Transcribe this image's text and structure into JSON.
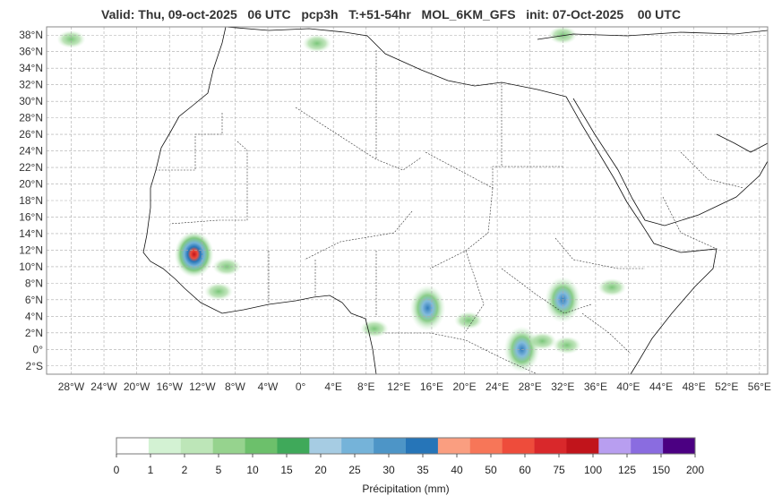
{
  "title": "Valid: Thu, 09-oct-2025   06 UTC   pcp3h   T:+51-54hr   MOL_6KM_GFS   init: 07-Oct-2025    00 UTC",
  "map": {
    "lon_range": [
      -31,
      57
    ],
    "lat_range": [
      -3,
      39
    ],
    "lon_ticks": [
      {
        "value": -28,
        "label": "28°W"
      },
      {
        "value": -24,
        "label": "24°W"
      },
      {
        "value": -20,
        "label": "20°W"
      },
      {
        "value": -16,
        "label": "16°W"
      },
      {
        "value": -12,
        "label": "12°W"
      },
      {
        "value": -8,
        "label": "8°W"
      },
      {
        "value": -4,
        "label": "4°W"
      },
      {
        "value": 0,
        "label": "0°"
      },
      {
        "value": 4,
        "label": "4°E"
      },
      {
        "value": 8,
        "label": "8°E"
      },
      {
        "value": 12,
        "label": "12°E"
      },
      {
        "value": 16,
        "label": "16°E"
      },
      {
        "value": 20,
        "label": "20°E"
      },
      {
        "value": 24,
        "label": "24°E"
      },
      {
        "value": 28,
        "label": "28°E"
      },
      {
        "value": 32,
        "label": "32°E"
      },
      {
        "value": 36,
        "label": "36°E"
      },
      {
        "value": 40,
        "label": "40°E"
      },
      {
        "value": 44,
        "label": "44°E"
      },
      {
        "value": 48,
        "label": "48°E"
      },
      {
        "value": 52,
        "label": "52°E"
      },
      {
        "value": 56,
        "label": "56°E"
      }
    ],
    "lat_ticks": [
      {
        "value": 38,
        "label": "38°N"
      },
      {
        "value": 36,
        "label": "36°N"
      },
      {
        "value": 34,
        "label": "34°N"
      },
      {
        "value": 32,
        "label": "32°N"
      },
      {
        "value": 30,
        "label": "30°N"
      },
      {
        "value": 28,
        "label": "28°N"
      },
      {
        "value": 26,
        "label": "26°N"
      },
      {
        "value": 24,
        "label": "24°N"
      },
      {
        "value": 22,
        "label": "22°N"
      },
      {
        "value": 20,
        "label": "20°N"
      },
      {
        "value": 18,
        "label": "18°N"
      },
      {
        "value": 16,
        "label": "16°N"
      },
      {
        "value": 14,
        "label": "14°N"
      },
      {
        "value": 12,
        "label": "12°N"
      },
      {
        "value": 10,
        "label": "10°N"
      },
      {
        "value": 8,
        "label": "8°N"
      },
      {
        "value": 6,
        "label": "6°N"
      },
      {
        "value": 4,
        "label": "4°N"
      },
      {
        "value": 2,
        "label": "2°N"
      },
      {
        "value": 0,
        "label": "0°"
      },
      {
        "value": -2,
        "label": "2°S"
      }
    ],
    "grid": true,
    "precip_areas": [
      {
        "lon": -13,
        "lat": 11.5,
        "intensity": "heavy"
      },
      {
        "lon": -9,
        "lat": 10,
        "intensity": "light"
      },
      {
        "lon": -10,
        "lat": 7,
        "intensity": "light"
      },
      {
        "lon": 15.5,
        "lat": 5,
        "intensity": "moderate"
      },
      {
        "lon": 20.5,
        "lat": 3.5,
        "intensity": "light"
      },
      {
        "lon": 27,
        "lat": 0,
        "intensity": "moderate"
      },
      {
        "lon": 32,
        "lat": 6,
        "intensity": "moderate"
      },
      {
        "lon": 38,
        "lat": 7.5,
        "intensity": "light"
      },
      {
        "lon": 29.5,
        "lat": 1,
        "intensity": "light"
      },
      {
        "lon": 32.5,
        "lat": 0.5,
        "intensity": "light"
      },
      {
        "lon": 9,
        "lat": 2.5,
        "intensity": "light"
      },
      {
        "lon": 2,
        "lat": 37,
        "intensity": "light"
      },
      {
        "lon": 32,
        "lat": 38,
        "intensity": "light"
      },
      {
        "lon": -28,
        "lat": 37.5,
        "intensity": "light"
      }
    ]
  },
  "colorbar": {
    "label": "Précipitation (mm)",
    "ticks": [
      "0",
      "1",
      "2",
      "5",
      "10",
      "15",
      "20",
      "25",
      "30",
      "35",
      "40",
      "50",
      "60",
      "75",
      "100",
      "125",
      "150",
      "200"
    ],
    "colors": [
      "#ffffff",
      "#d3f2d3",
      "#bde6b8",
      "#96d38e",
      "#6cc06b",
      "#3fa95a",
      "#a6cce3",
      "#75b3d9",
      "#4d95c7",
      "#2675b8",
      "#fa9e80",
      "#f77658",
      "#ee4c3b",
      "#d9282b",
      "#c1141b",
      "#b89ef0",
      "#8a6ce0",
      "#4b0082"
    ]
  }
}
